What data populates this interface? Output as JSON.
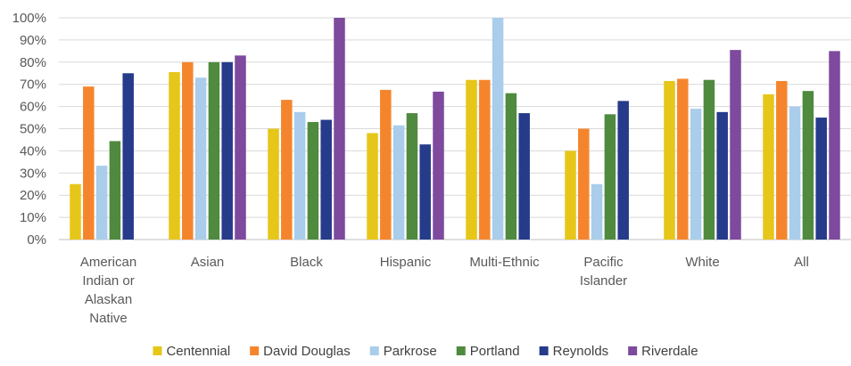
{
  "chart_data": {
    "type": "bar",
    "title": "",
    "xlabel": "",
    "ylabel": "",
    "ylim": [
      0,
      100
    ],
    "y_ticks": [
      0,
      10,
      20,
      30,
      40,
      50,
      60,
      70,
      80,
      90,
      100
    ],
    "y_tick_suffix": "%",
    "grid": "horizontal",
    "legend_position": "bottom",
    "categories": [
      "American Indian or Alaskan Native",
      "Asian",
      "Black",
      "Hispanic",
      "Multi-Ethnic",
      "Pacific Islander",
      "White",
      "All"
    ],
    "category_label_lines": [
      [
        "American",
        "Indian or",
        "Alaskan",
        "Native"
      ],
      [
        "Asian"
      ],
      [
        "Black"
      ],
      [
        "Hispanic"
      ],
      [
        "Multi-Ethnic"
      ],
      [
        "Pacific",
        "Islander"
      ],
      [
        "White"
      ],
      [
        "All"
      ]
    ],
    "series": [
      {
        "name": "Centennial",
        "color": "#E6C619",
        "values": [
          25,
          75.5,
          50,
          48,
          72,
          40,
          71.5,
          65.5
        ]
      },
      {
        "name": "David Douglas",
        "color": "#F5852C",
        "values": [
          69,
          80,
          63,
          67.5,
          72,
          50,
          72.5,
          71.5
        ]
      },
      {
        "name": "Parkrose",
        "color": "#A9CDEB",
        "values": [
          33.3,
          73,
          57.5,
          51.5,
          100,
          25,
          59,
          60
        ]
      },
      {
        "name": "Portland",
        "color": "#4F8A3F",
        "values": [
          44.4,
          80,
          53,
          57,
          66,
          56.5,
          72,
          67
        ]
      },
      {
        "name": "Reynolds",
        "color": "#263B8A",
        "values": [
          75,
          80,
          54,
          42.9,
          57,
          62.5,
          57.5,
          55
        ]
      },
      {
        "name": "Riverdale",
        "color": "#7E4A9D",
        "values": [
          null,
          83,
          100,
          66.7,
          null,
          null,
          85.5,
          85
        ]
      }
    ]
  }
}
